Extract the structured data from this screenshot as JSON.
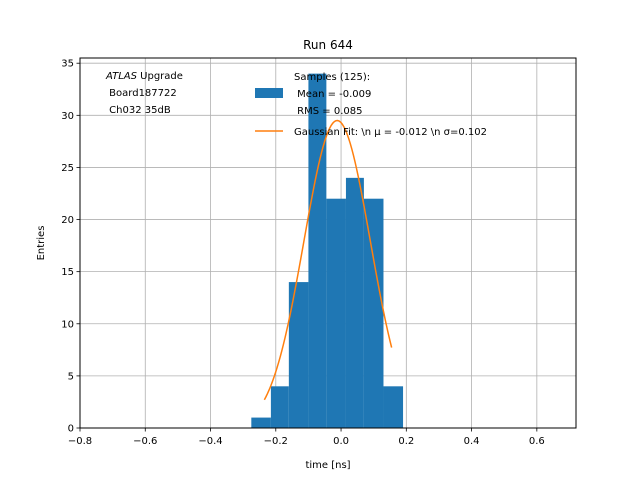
{
  "chart_data": {
    "type": "bar",
    "title": "Run 644",
    "xlabel": "time [ns]",
    "ylabel": "Entries",
    "xlim": [
      -0.8,
      0.72
    ],
    "ylim": [
      0,
      35.5
    ],
    "grid": true,
    "x_ticks": [
      -0.8,
      -0.6,
      -0.4,
      -0.2,
      0.0,
      0.2,
      0.4,
      0.6
    ],
    "x_tick_labels": [
      "−0.8",
      "−0.6",
      "−0.4",
      "−0.2",
      "0.0",
      "0.2",
      "0.4",
      "0.6"
    ],
    "y_ticks": [
      0,
      5,
      10,
      15,
      20,
      25,
      30,
      35
    ],
    "y_tick_labels": [
      "0",
      "5",
      "10",
      "15",
      "20",
      "25",
      "30",
      "35"
    ],
    "annotation": {
      "lines": [
        " Upgrade",
        " Board187722",
        " Ch032 35dB"
      ],
      "italic_prefix": "ATLAS"
    },
    "histogram": {
      "name": "Samples (125):\n Mean = -0.009\n RMS = 0.085",
      "color": "#1f77b4",
      "bins": [
        {
          "x0": -0.275,
          "x1": -0.215,
          "count": 1
        },
        {
          "x0": -0.215,
          "x1": -0.16,
          "count": 4
        },
        {
          "x0": -0.16,
          "x1": -0.1,
          "count": 14
        },
        {
          "x0": -0.1,
          "x1": -0.045,
          "count": 34
        },
        {
          "x0": -0.045,
          "x1": 0.015,
          "count": 22
        },
        {
          "x0": 0.015,
          "x1": 0.07,
          "count": 24
        },
        {
          "x0": 0.07,
          "x1": 0.13,
          "count": 22
        },
        {
          "x0": 0.13,
          "x1": 0.19,
          "count": 4
        }
      ]
    },
    "fit": {
      "name": "Gaussian Fit: \\n μ = -0.012 \\n σ=0.102",
      "color": "#ff7f0e",
      "mu": -0.012,
      "sigma": 0.102,
      "amplitude": 29.5,
      "x_range": [
        -0.235,
        0.155
      ]
    },
    "legend": {
      "placement": "upper-center",
      "entries": [
        {
          "label_lines": [
            "Samples (125):",
            " Mean = -0.009",
            " RMS = 0.085"
          ],
          "kind": "patch",
          "color": "#1f77b4"
        },
        {
          "label_lines": [
            "Gaussian Fit: \\n μ = -0.012 \\n σ=0.102"
          ],
          "kind": "line",
          "color": "#ff7f0e"
        }
      ]
    }
  }
}
